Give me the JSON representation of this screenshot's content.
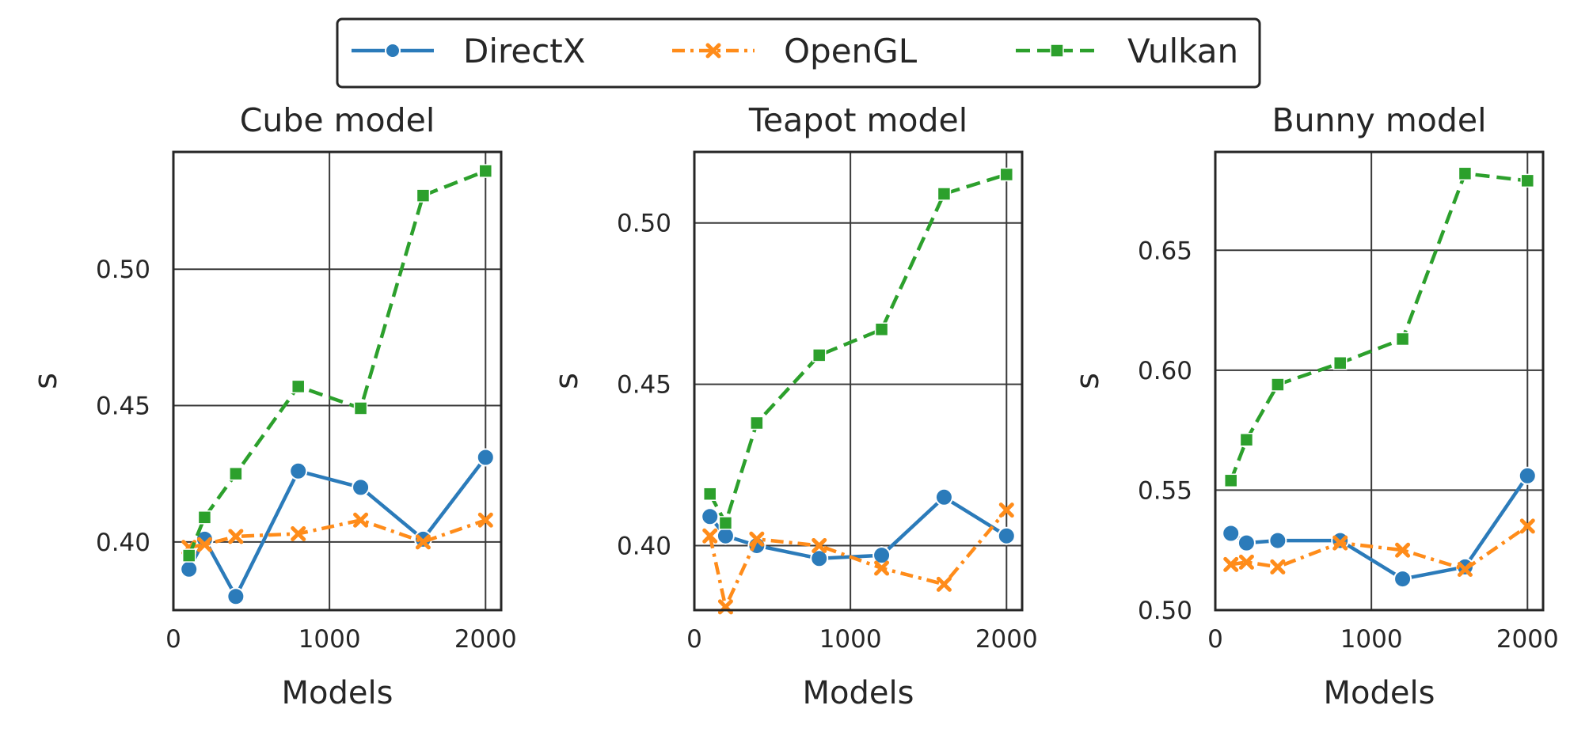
{
  "chart_data": {
    "type": "line",
    "legend": {
      "placement": "top-center",
      "entries": [
        {
          "name": "DirectX",
          "color": "#2b7bba",
          "marker": "circle",
          "linestyle": "solid"
        },
        {
          "name": "OpenGL",
          "color": "#ff8c1a",
          "marker": "x",
          "linestyle": "dashdot"
        },
        {
          "name": "Vulkan",
          "color": "#2ca02c",
          "marker": "square",
          "linestyle": "dashed"
        }
      ]
    },
    "panels": [
      {
        "title": "Cube model",
        "xlabel": "Models",
        "ylabel": "s",
        "xlim": [
          0,
          2100
        ],
        "ylim": [
          0.375,
          0.543
        ],
        "xticks": [
          0,
          1000,
          2000
        ],
        "yticks": [
          0.4,
          0.45,
          0.5
        ],
        "xtick_labels": [
          "0",
          "1000",
          "2000"
        ],
        "ytick_labels": [
          "0.40",
          "0.45",
          "0.50"
        ],
        "grid": true,
        "x": [
          100,
          200,
          400,
          800,
          1200,
          1600,
          2000
        ],
        "series": [
          {
            "name": "DirectX",
            "values": [
              0.39,
              0.401,
              0.38,
              0.426,
              0.42,
              0.401,
              0.431
            ]
          },
          {
            "name": "OpenGL",
            "values": [
              0.398,
              0.399,
              0.402,
              0.403,
              0.408,
              0.4,
              0.408
            ]
          },
          {
            "name": "Vulkan",
            "values": [
              0.395,
              0.409,
              0.425,
              0.457,
              0.449,
              0.527,
              0.536
            ]
          }
        ]
      },
      {
        "title": "Teapot model",
        "xlabel": "Models",
        "ylabel": "s",
        "xlim": [
          0,
          2100
        ],
        "ylim": [
          0.38,
          0.522
        ],
        "xticks": [
          0,
          1000,
          2000
        ],
        "yticks": [
          0.4,
          0.45,
          0.5
        ],
        "xtick_labels": [
          "0",
          "1000",
          "2000"
        ],
        "ytick_labels": [
          "0.40",
          "0.45",
          "0.50"
        ],
        "grid": true,
        "x": [
          100,
          200,
          400,
          800,
          1200,
          1600,
          2000
        ],
        "series": [
          {
            "name": "DirectX",
            "values": [
              0.409,
              0.403,
              0.4,
              0.396,
              0.397,
              0.415,
              0.403
            ]
          },
          {
            "name": "OpenGL",
            "values": [
              0.403,
              0.381,
              0.402,
              0.4,
              0.393,
              0.388,
              0.411
            ]
          },
          {
            "name": "Vulkan",
            "values": [
              0.416,
              0.407,
              0.438,
              0.459,
              0.467,
              0.509,
              0.515
            ]
          }
        ]
      },
      {
        "title": "Bunny model",
        "xlabel": "Models",
        "ylabel": "s",
        "xlim": [
          0,
          2100
        ],
        "ylim": [
          0.5,
          0.691
        ],
        "xticks": [
          0,
          1000,
          2000
        ],
        "yticks": [
          0.5,
          0.55,
          0.6,
          0.65
        ],
        "xtick_labels": [
          "0",
          "1000",
          "2000"
        ],
        "ytick_labels": [
          "0.50",
          "0.55",
          "0.60",
          "0.65"
        ],
        "grid": true,
        "x": [
          100,
          200,
          400,
          800,
          1200,
          1600,
          2000
        ],
        "series": [
          {
            "name": "DirectX",
            "values": [
              0.532,
              0.528,
              0.529,
              0.529,
              0.513,
              0.518,
              0.556
            ]
          },
          {
            "name": "OpenGL",
            "values": [
              0.519,
              0.52,
              0.518,
              0.528,
              0.525,
              0.517,
              0.535
            ]
          },
          {
            "name": "Vulkan",
            "values": [
              0.554,
              0.571,
              0.594,
              0.603,
              0.613,
              0.682,
              0.679
            ]
          }
        ]
      }
    ]
  }
}
